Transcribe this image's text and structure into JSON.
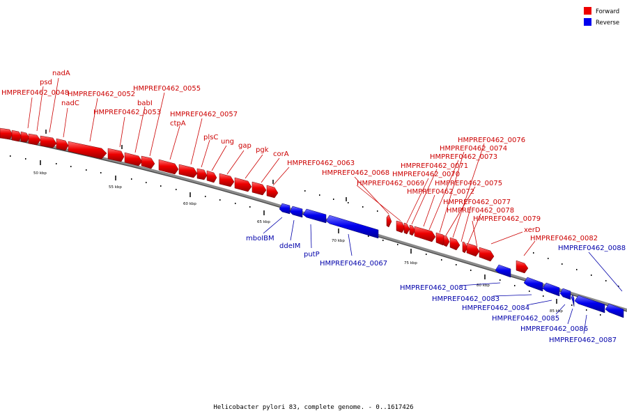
{
  "caption": "Helicobacter pylori 83, complete genome. - 0..1617426",
  "legend": {
    "forward_label": "Forward",
    "reverse_label": "Reverse",
    "forward_color": "#ee0000",
    "reverse_color": "#0000ee"
  },
  "scale_labels": [
    "50 kbp",
    "55 kbp",
    "60 kbp",
    "65 kbp",
    "70 kbp",
    "75 kbp",
    "80 kbp",
    "85 kbp"
  ],
  "forward_genes": [
    "HMPREF0462_0048",
    "psd",
    "nadA",
    "nadC",
    "HMPREF0462_0052",
    "HMPREF0462_0053",
    "babI",
    "HMPREF0462_0055",
    "ctpA",
    "HMPREF0462_0057",
    "plsC",
    "ung",
    "gap",
    "pgk",
    "corA",
    "HMPREF0462_0063",
    "HMPREF0462_0068",
    "HMPREF0462_0069",
    "HMPREF0462_0070",
    "HMPREF0462_0071",
    "HMPREF0462_0072",
    "HMPREF0462_0073",
    "HMPREF0462_0074",
    "HMPREF0462_0075",
    "HMPREF0462_0076",
    "HMPREF0462_0077",
    "HMPREF0462_0078",
    "HMPREF0462_0079",
    "xerD",
    "HMPREF0462_0082"
  ],
  "reverse_genes": [
    "mboIBM",
    "ddeIM",
    "putP",
    "HMPREF0462_0067",
    "HMPREF0462_0081",
    "HMPREF0462_0083",
    "HMPREF0462_0084",
    "HMPREF0462_0085",
    "HMPREF0462_0086",
    "HMPREF0462_0087",
    "HMPREF0462_0088"
  ]
}
